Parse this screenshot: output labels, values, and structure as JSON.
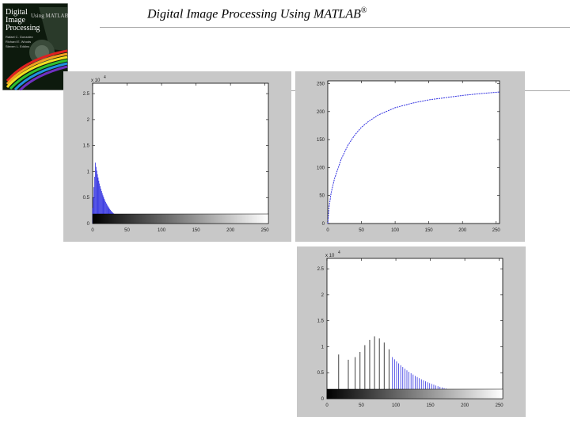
{
  "header": {
    "title": "Digital Image Processing Using MATLAB",
    "trademark": "®"
  },
  "book_cover": {
    "title_line1": "Digital",
    "title_line2": "Image",
    "title_line3": "Processing",
    "subtitle": "Using MATLAB",
    "authors": [
      "Rafael C. Gonzalez",
      "Richard E. Woods",
      "Steven L. Eddins"
    ],
    "colors": {
      "background": "#0d1a0d",
      "rainbow": [
        "#e02020",
        "#f0a020",
        "#f0e020",
        "#30c030",
        "#2090e0",
        "#7030c0"
      ]
    }
  },
  "chart_data": [
    {
      "type": "bar",
      "title": "",
      "xlabel": "",
      "ylabel": "",
      "xlim": [
        0,
        255
      ],
      "ylim": [
        0,
        27000
      ],
      "xticks": [
        "0",
        "50",
        "100",
        "150",
        "200",
        "250"
      ],
      "yticks": [
        "0",
        "0.5",
        "1",
        "1.5",
        "2",
        "2.5"
      ],
      "ytick_values": [
        0,
        5000,
        10000,
        15000,
        20000,
        25000
      ],
      "exponent_label": "x 10",
      "exponent_power": "4",
      "grayscale_bar": true,
      "bar_color": "#3030e0",
      "histogram_formula": "decay",
      "peak_bin": 4,
      "peak_value": 11500
    },
    {
      "type": "line",
      "title": "",
      "xlabel": "",
      "ylabel": "",
      "xlim": [
        0,
        255
      ],
      "ylim": [
        0,
        255
      ],
      "xticks": [
        "0",
        "50",
        "100",
        "150",
        "200",
        "250"
      ],
      "yticks": [
        "0",
        "50",
        "100",
        "150",
        "200",
        "250"
      ],
      "ytick_values": [
        0,
        50,
        100,
        150,
        200,
        250
      ],
      "line_color": "#3030e0",
      "points": [
        [
          0,
          0
        ],
        [
          2,
          30
        ],
        [
          5,
          55
        ],
        [
          10,
          80
        ],
        [
          20,
          115
        ],
        [
          30,
          140
        ],
        [
          40,
          158
        ],
        [
          50,
          172
        ],
        [
          60,
          182
        ],
        [
          75,
          194
        ],
        [
          100,
          207
        ],
        [
          125,
          215
        ],
        [
          150,
          221
        ],
        [
          175,
          225
        ],
        [
          200,
          229
        ],
        [
          225,
          232
        ],
        [
          255,
          235
        ]
      ]
    },
    {
      "type": "bar",
      "title": "",
      "xlabel": "",
      "ylabel": "",
      "xlim": [
        0,
        255
      ],
      "ylim": [
        0,
        27000
      ],
      "xticks": [
        "0",
        "50",
        "100",
        "150",
        "200",
        "250"
      ],
      "yticks": [
        "0",
        "0.5",
        "1",
        "1.5",
        "2",
        "2.5"
      ],
      "ytick_values": [
        0,
        5000,
        10000,
        15000,
        20000,
        25000
      ],
      "exponent_label": "x 10",
      "exponent_power": "4",
      "grayscale_bar": true,
      "bar_color": "#3030e0",
      "sparse_bars": [
        [
          17,
          8500
        ],
        [
          31,
          7500
        ],
        [
          41,
          8000
        ],
        [
          48,
          9000
        ],
        [
          55,
          10300
        ],
        [
          62,
          11300
        ],
        [
          69,
          12000
        ],
        [
          76,
          11600
        ],
        [
          83,
          10800
        ],
        [
          90,
          9500
        ]
      ]
    }
  ]
}
